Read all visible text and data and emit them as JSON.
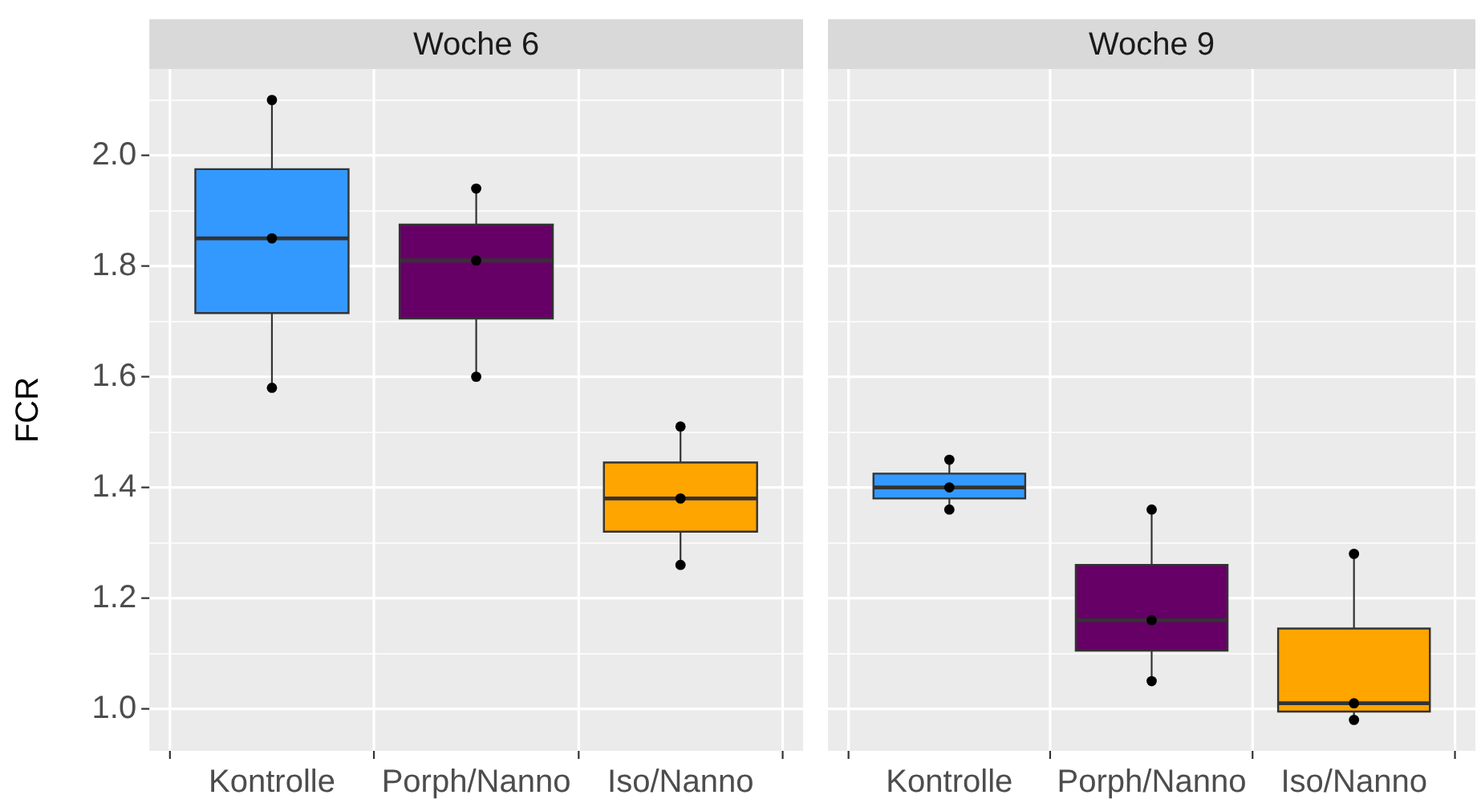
{
  "chart_data": [
    {
      "type": "box",
      "title": "Woche 6",
      "ylabel": "FCR",
      "categories": [
        "Kontrolle",
        "Porph/Nanno",
        "Iso/Nanno"
      ],
      "series": [
        {
          "type": "box",
          "colors": [
            "#3399ff",
            "#660066",
            "#ffa500"
          ],
          "boxes": [
            {
              "low": 1.58,
              "q1": 1.715,
              "median": 1.85,
              "q3": 1.975,
              "high": 2.1
            },
            {
              "low": 1.6,
              "q1": 1.705,
              "median": 1.81,
              "q3": 1.875,
              "high": 1.94
            },
            {
              "low": 1.26,
              "q1": 1.32,
              "median": 1.38,
              "q3": 1.445,
              "high": 1.51
            }
          ]
        },
        {
          "type": "scatter",
          "color": "#000000",
          "marker": "circle",
          "x": [
            "Kontrolle",
            "Kontrolle",
            "Kontrolle",
            "Porph/Nanno",
            "Porph/Nanno",
            "Porph/Nanno",
            "Iso/Nanno",
            "Iso/Nanno",
            "Iso/Nanno"
          ],
          "values": [
            2.1,
            1.85,
            1.58,
            1.94,
            1.81,
            1.6,
            1.51,
            1.38,
            1.26
          ]
        }
      ],
      "ylim": [
        0.924,
        2.156
      ],
      "yticks": [
        {
          "value": 1,
          "label": "1.0"
        },
        {
          "value": 1.1,
          "label": null
        },
        1.2,
        {
          "value": 1.3,
          "label": null
        },
        1.4,
        {
          "value": 1.5,
          "label": null
        },
        1.6,
        {
          "value": 1.7,
          "label": null
        },
        1.8,
        {
          "value": 1.9,
          "label": null
        },
        {
          "value": 2,
          "label": "2.0"
        },
        {
          "value": 2.1,
          "label": null
        }
      ],
      "grid": true
    },
    {
      "type": "box",
      "title": "Woche 9",
      "categories": [
        "Kontrolle",
        "Porph/Nanno",
        "Iso/Nanno"
      ],
      "series": [
        {
          "type": "box",
          "colors": [
            "#3399ff",
            "#660066",
            "#ffa500"
          ],
          "boxes": [
            {
              "low": 1.36,
              "q1": 1.38,
              "median": 1.4,
              "q3": 1.425,
              "high": 1.45
            },
            {
              "low": 1.05,
              "q1": 1.105,
              "median": 1.16,
              "q3": 1.26,
              "high": 1.36
            },
            {
              "low": 0.98,
              "q1": 0.995,
              "median": 1.01,
              "q3": 1.145,
              "high": 1.28
            }
          ]
        },
        {
          "type": "scatter",
          "color": "#000000",
          "marker": "circle",
          "x": [
            "Kontrolle",
            "Kontrolle",
            "Kontrolle",
            "Porph/Nanno",
            "Porph/Nanno",
            "Porph/Nanno",
            "Iso/Nanno",
            "Iso/Nanno",
            "Iso/Nanno"
          ],
          "values": [
            1.45,
            1.4,
            1.36,
            1.36,
            1.16,
            1.05,
            1.28,
            1.01,
            0.98
          ]
        }
      ],
      "ylim": [
        0.924,
        2.156
      ],
      "yticks": [
        1,
        {
          "value": 1.1,
          "label": null
        },
        1.2,
        {
          "value": 1.3,
          "label": null
        },
        1.4,
        {
          "value": 1.5,
          "label": null
        },
        1.6,
        {
          "value": 1.7,
          "label": null
        },
        1.8,
        {
          "value": 1.9,
          "label": null
        },
        2,
        {
          "value": 2.1,
          "label": null
        }
      ],
      "grid": true,
      "tick_labels": "x"
    }
  ]
}
